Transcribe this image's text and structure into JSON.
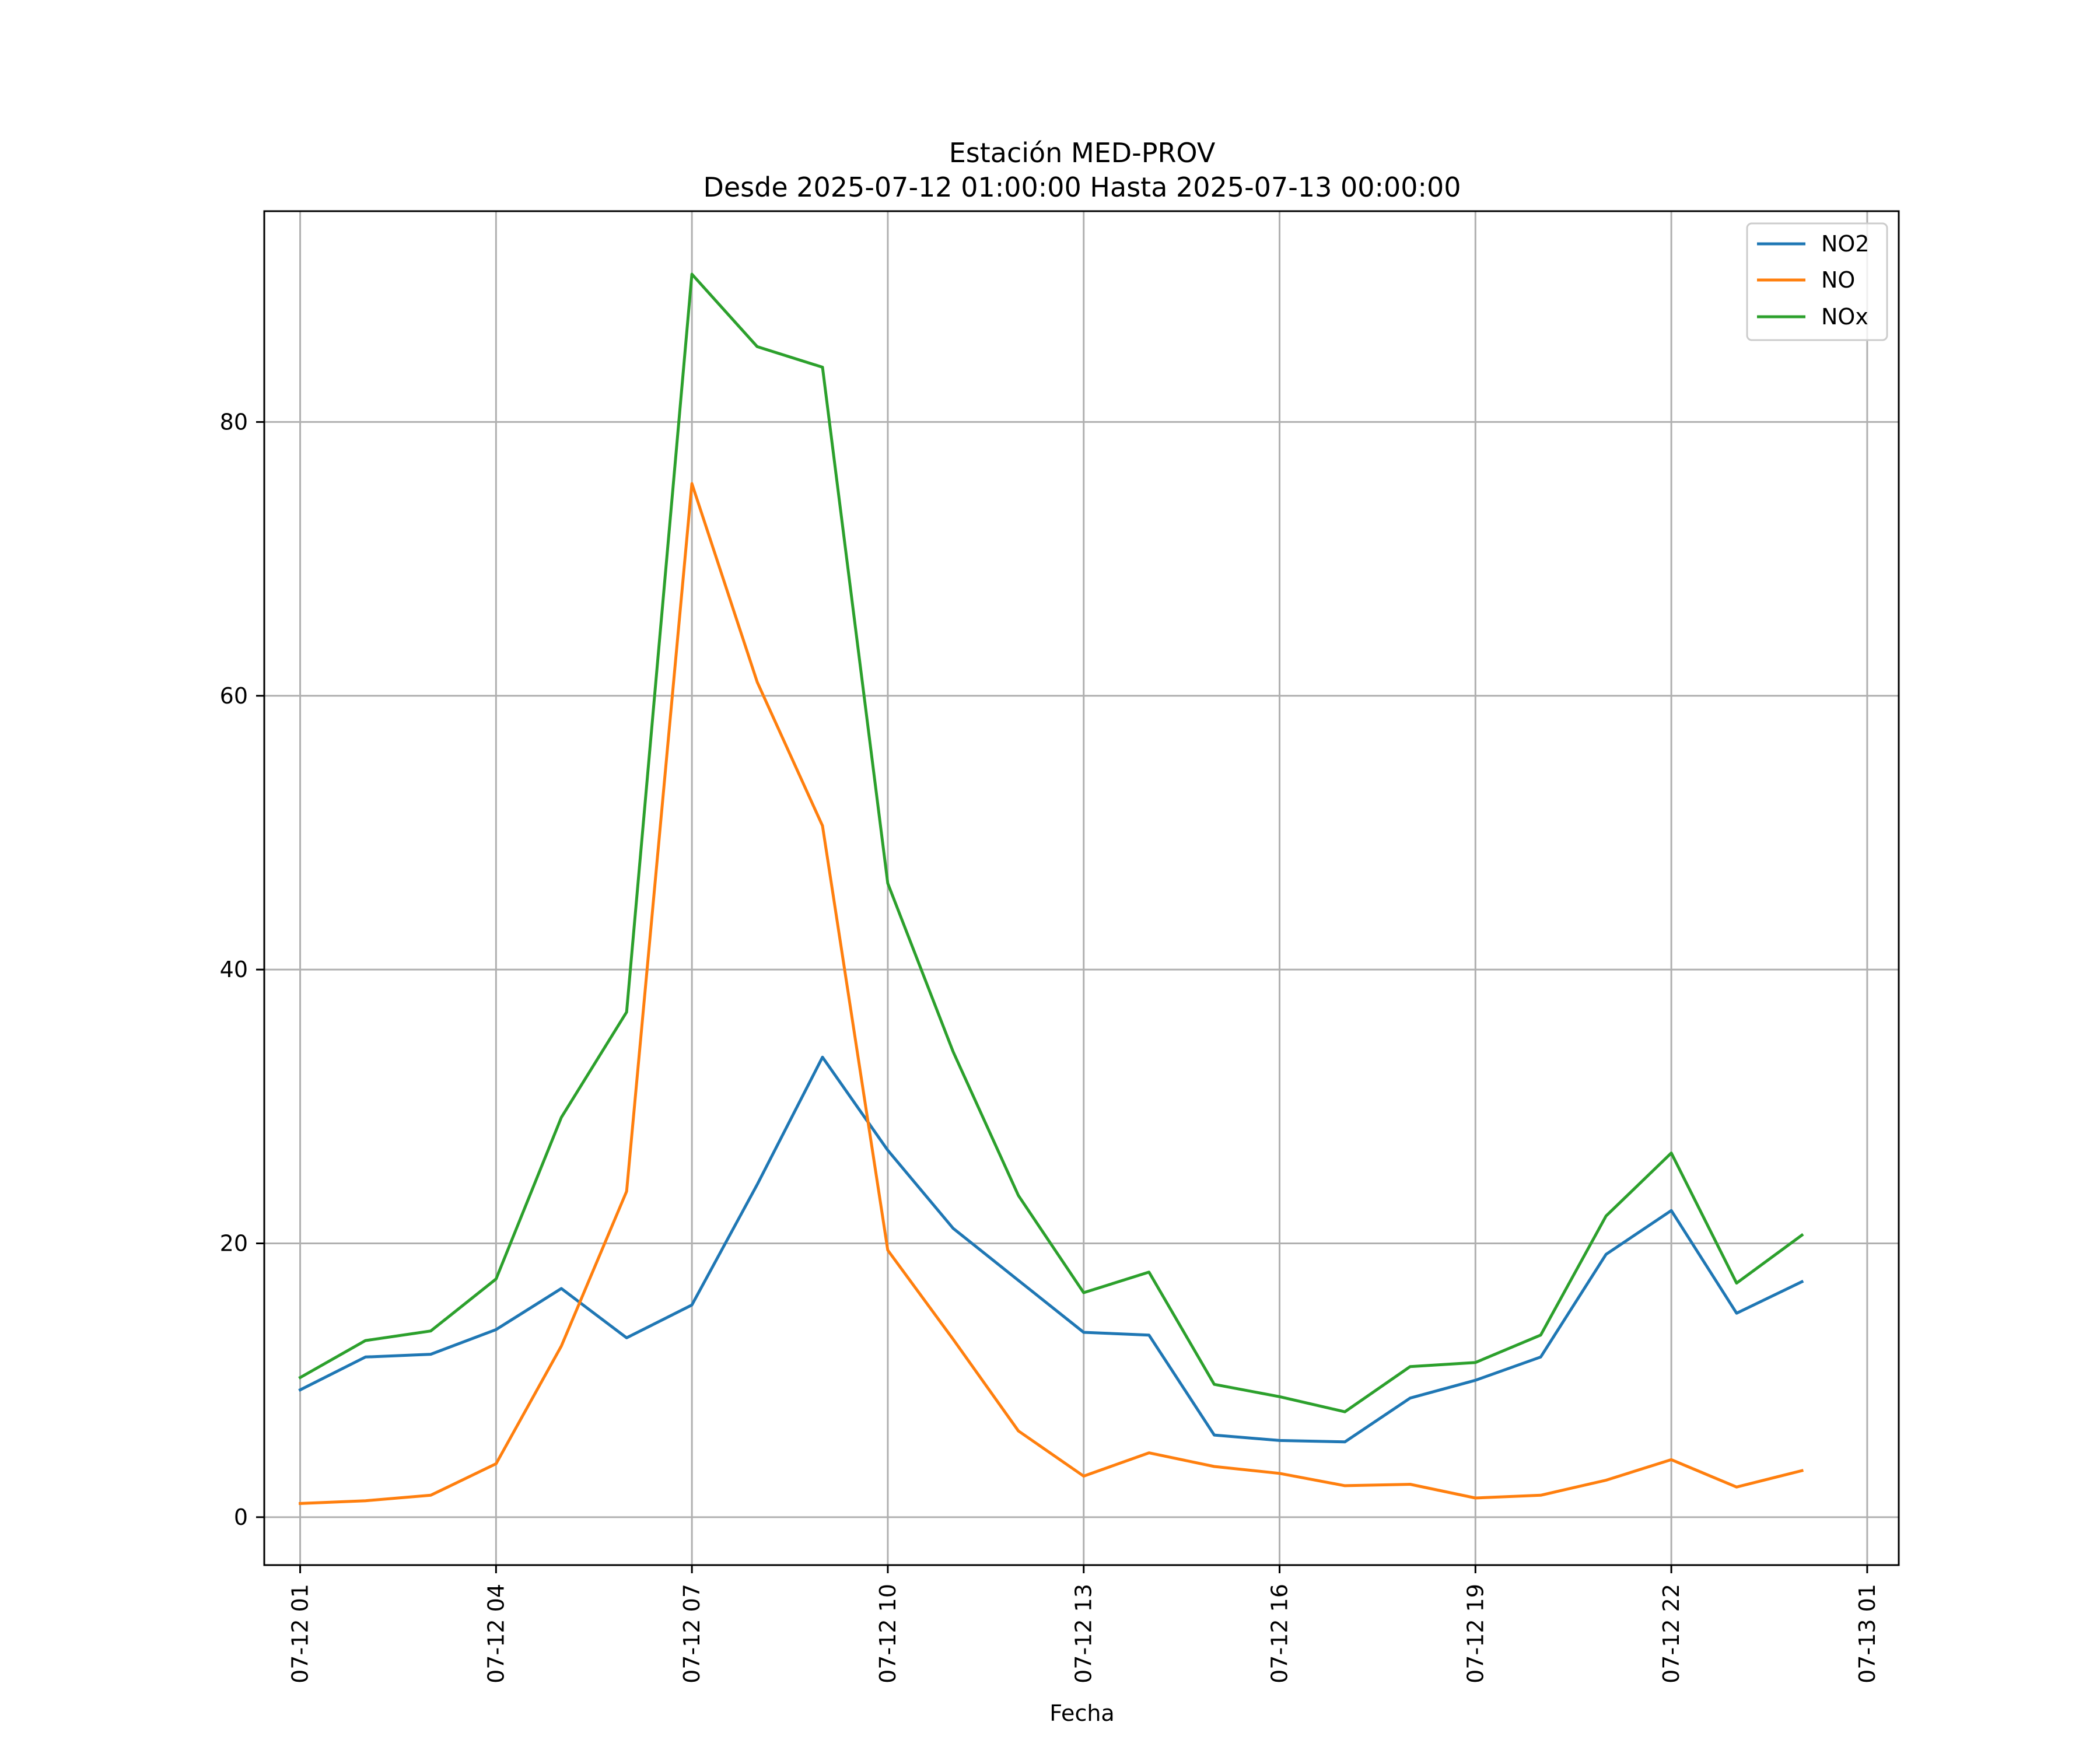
{
  "chart_data": {
    "type": "line",
    "title": "Estación MED-PROV",
    "subtitle": "Desde 2025-07-12 01:00:00 Hasta 2025-07-13 00:00:00",
    "xlabel": "Fecha",
    "ylabel": "",
    "x": [
      "2025-07-12 01:00",
      "2025-07-12 02:00",
      "2025-07-12 03:00",
      "2025-07-12 04:00",
      "2025-07-12 05:00",
      "2025-07-12 06:00",
      "2025-07-12 07:00",
      "2025-07-12 08:00",
      "2025-07-12 09:00",
      "2025-07-12 10:00",
      "2025-07-12 11:00",
      "2025-07-12 12:00",
      "2025-07-12 13:00",
      "2025-07-12 14:00",
      "2025-07-12 15:00",
      "2025-07-12 16:00",
      "2025-07-12 17:00",
      "2025-07-12 18:00",
      "2025-07-12 19:00",
      "2025-07-12 20:00",
      "2025-07-12 21:00",
      "2025-07-12 22:00",
      "2025-07-12 23:00",
      "2025-07-13 00:00"
    ],
    "series": [
      {
        "name": "NO2",
        "color": "#1f77b4",
        "values": [
          9.3,
          11.7,
          11.9,
          13.7,
          16.7,
          13.1,
          15.5,
          24.3,
          33.6,
          26.8,
          21.1,
          17.3,
          13.5,
          13.3,
          6.0,
          5.6,
          5.5,
          8.7,
          10.0,
          11.7,
          19.2,
          22.4,
          14.9,
          17.2
        ]
      },
      {
        "name": "NO",
        "color": "#ff7f0e",
        "values": [
          1.0,
          1.2,
          1.6,
          3.9,
          12.5,
          23.8,
          75.5,
          61.0,
          50.5,
          19.5,
          13.0,
          6.3,
          3.0,
          4.7,
          3.7,
          3.2,
          2.3,
          2.4,
          1.4,
          1.6,
          2.7,
          4.2,
          2.2,
          3.4
        ]
      },
      {
        "name": "NOx",
        "color": "#2ca02c",
        "values": [
          10.2,
          12.9,
          13.6,
          17.4,
          29.2,
          36.9,
          90.8,
          85.5,
          84.0,
          46.3,
          34.0,
          23.5,
          16.4,
          17.9,
          9.7,
          8.8,
          7.7,
          11.0,
          11.3,
          13.3,
          22.0,
          26.6,
          17.1,
          20.6
        ]
      }
    ],
    "xticks": [
      "07-12 01",
      "07-12 04",
      "07-12 07",
      "07-12 10",
      "07-12 13",
      "07-12 16",
      "07-12 19",
      "07-12 22",
      "07-13 01"
    ],
    "yticks": [
      0,
      20,
      40,
      60,
      80
    ],
    "ylim": [
      -3.5,
      95.4
    ],
    "xlim": [
      "2025-07-12 00:27",
      "2025-07-13 01:29"
    ],
    "grid": true,
    "legend_position": "top-right"
  }
}
